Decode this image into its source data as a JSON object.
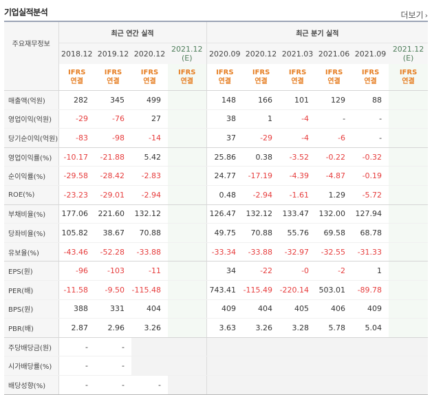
{
  "header": {
    "title": "기업실적분석",
    "more_label": "더보기",
    "more_icon": "chevron-right-icon"
  },
  "table": {
    "label_header": "주요재무정보",
    "annual_header": "최근 연간 실적",
    "quarter_header": "최근 분기 실적",
    "annual_years": [
      "2018.12",
      "2019.12",
      "2020.12"
    ],
    "annual_est": {
      "year": "2021.12",
      "tag": "(E)"
    },
    "quarter_years": [
      "2020.09",
      "2020.12",
      "2021.03",
      "2021.06",
      "2021.09"
    ],
    "quarter_est": {
      "year": "2021.12",
      "tag": "(E)"
    },
    "ifrs_top": "IFRS",
    "ifrs_bottom": "연결",
    "rows": [
      {
        "label": "매출액(억원)",
        "a": [
          "282",
          "345",
          "499"
        ],
        "q": [
          "148",
          "166",
          "101",
          "129",
          "88"
        ],
        "group_end": false
      },
      {
        "label": "영업이익(억원)",
        "a": [
          "-29",
          "-76",
          "27"
        ],
        "q": [
          "38",
          "1",
          "-4",
          "-",
          "-"
        ],
        "group_end": false
      },
      {
        "label": "당기순이익(억원)",
        "a": [
          "-83",
          "-98",
          "-14"
        ],
        "q": [
          "37",
          "-29",
          "-4",
          "-6",
          "-"
        ],
        "group_end": true
      },
      {
        "label": "영업이익률(%)",
        "a": [
          "-10.17",
          "-21.88",
          "5.42"
        ],
        "q": [
          "25.86",
          "0.38",
          "-3.52",
          "-0.22",
          "-0.32"
        ],
        "group_end": false
      },
      {
        "label": "순이익률(%)",
        "a": [
          "-29.58",
          "-28.42",
          "-2.83"
        ],
        "q": [
          "24.77",
          "-17.19",
          "-4.39",
          "-4.87",
          "-0.19"
        ],
        "group_end": false
      },
      {
        "label": "ROE(%)",
        "a": [
          "-23.23",
          "-29.01",
          "-2.94"
        ],
        "q": [
          "0.48",
          "-2.94",
          "-1.61",
          "1.29",
          "-5.72"
        ],
        "group_end": true
      },
      {
        "label": "부채비율(%)",
        "a": [
          "177.06",
          "221.60",
          "132.12"
        ],
        "q": [
          "126.47",
          "132.12",
          "133.47",
          "132.00",
          "127.94"
        ],
        "group_end": false
      },
      {
        "label": "당좌비율(%)",
        "a": [
          "105.82",
          "38.67",
          "70.88"
        ],
        "q": [
          "49.75",
          "70.88",
          "55.76",
          "69.58",
          "68.78"
        ],
        "group_end": false
      },
      {
        "label": "유보율(%)",
        "a": [
          "-43.46",
          "-52.28",
          "-33.88"
        ],
        "q": [
          "-33.34",
          "-33.88",
          "-32.97",
          "-32.55",
          "-31.33"
        ],
        "group_end": true
      },
      {
        "label": "EPS(원)",
        "a": [
          "-96",
          "-103",
          "-11"
        ],
        "q": [
          "34",
          "-22",
          "-0",
          "-2",
          "1"
        ],
        "group_end": false
      },
      {
        "label": "PER(배)",
        "a": [
          "-11.58",
          "-9.50",
          "-115.48"
        ],
        "q": [
          "743.41",
          "-115.49",
          "-220.14",
          "503.01",
          "-89.78"
        ],
        "group_end": false
      },
      {
        "label": "BPS(원)",
        "a": [
          "388",
          "331",
          "404"
        ],
        "q": [
          "409",
          "404",
          "405",
          "406",
          "409"
        ],
        "group_end": false
      },
      {
        "label": "PBR(배)",
        "a": [
          "2.87",
          "2.96",
          "3.26"
        ],
        "q": [
          "3.63",
          "3.26",
          "3.28",
          "5.78",
          "5.04"
        ],
        "group_end": true
      },
      {
        "label": "주당배당금(원)",
        "a": [
          "-",
          "-",
          ""
        ],
        "q": [
          "",
          "",
          "",
          "",
          ""
        ],
        "group_end": false
      },
      {
        "label": "시가배당률(%)",
        "a": [
          "-",
          "-",
          ""
        ],
        "q": [
          "",
          "",
          "",
          "",
          ""
        ],
        "group_end": false
      },
      {
        "label": "배당성향(%)",
        "a": [
          "-",
          "-",
          "-"
        ],
        "q": [
          "",
          "",
          "",
          "",
          ""
        ],
        "group_end": true
      }
    ]
  },
  "colors": {
    "negative": "#e63c3c",
    "ifrs": "#e67e22",
    "estimate": "#4e7d5a",
    "estimate_bg": "#f4f9f4"
  }
}
